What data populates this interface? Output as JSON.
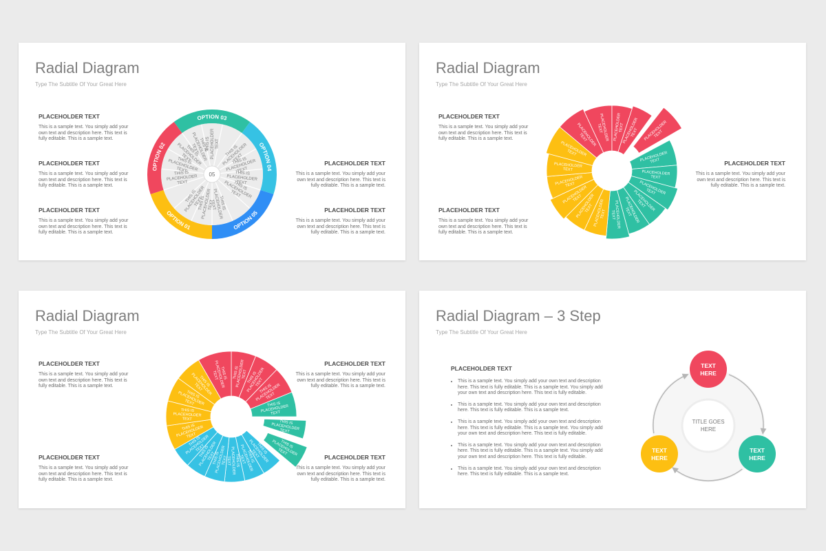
{
  "slides": [
    {
      "title": "Radial Diagram",
      "subtitle": "Type The Subtitle Of Your Great Here",
      "center": "05",
      "options": [
        {
          "label": "OPTION 01",
          "color": "#fdbf12"
        },
        {
          "label": "OPTION 02",
          "color": "#f0475e"
        },
        {
          "label": "OPTION 03",
          "color": "#2fc0a3"
        },
        {
          "label": "OPTION 04",
          "color": "#36c2e4"
        },
        {
          "label": "OPTION 05",
          "color": "#2f8ef5"
        }
      ],
      "segment_label": "THIS IS PLACEHOLDER TEXT",
      "blocks": [
        {
          "heading": "PLACEHOLDER TEXT",
          "body": "This is a sample text. You simply add your own text and description here. This text is fully editable. This is a sample text."
        },
        {
          "heading": "PLACEHOLDER TEXT",
          "body": "This is a sample text. You simply add your own text and description here. This text is fully editable. This is a sample text."
        },
        {
          "heading": "PLACEHOLDER TEXT",
          "body": "This is a sample text. You simply add your own text and description here. This text is fully editable. This is a sample text."
        },
        {
          "heading": "PLACEHOLDER TEXT",
          "body": "This is a sample text. You simply add your own text and description here. This text is fully editable. This is a sample text."
        },
        {
          "heading": "PLACEHOLDER TEXT",
          "body": "This is a sample text. You simply add your own text and description here. This text is fully editable. This is a sample text."
        }
      ]
    },
    {
      "title": "Radial Diagram",
      "subtitle": "Type The Subtitle Of Your Great Here",
      "segment_label": "PLACEHOLDER TEXT",
      "colors": {
        "red": "#f0475e",
        "yellow": "#fdbf12",
        "teal": "#2fc0a3"
      },
      "blocks": [
        {
          "heading": "PLACEHOLDER TEXT",
          "body": "This is a sample text. You simply add your own text and description here. This text is fully editable. This is a sample text."
        },
        {
          "heading": "PLACEHOLDER TEXT",
          "body": "This is a sample text. You simply add your own text and description here. This text is fully editable. This is a sample text."
        },
        {
          "heading": "PLACEHOLDER TEXT",
          "body": "This is a sample text. You simply add your own text and description here. This text is fully editable. This is a sample text."
        }
      ]
    },
    {
      "title": "Radial Diagram",
      "subtitle": "Type The Subtitle Of Your Great Here",
      "segment_label": "THIS IS PLACEHOLDER TEXT",
      "colors": {
        "red": "#f0475e",
        "teal": "#2fc0a3",
        "blue": "#36c2e4",
        "yellow": "#fdbf12"
      },
      "blocks": [
        {
          "heading": "PLACEHOLDER TEXT",
          "body": "This is a sample text. You simply add your own text and description here. This text is fully editable. This is a sample text."
        },
        {
          "heading": "PLACEHOLDER TEXT",
          "body": "This is a sample text. You simply add your own text and description here. This text is fully editable. This is a sample text."
        },
        {
          "heading": "PLACEHOLDER TEXT",
          "body": "This is a sample text. You simply add your own text and description here. This text is fully editable. This is a sample text."
        },
        {
          "heading": "PLACEHOLDER TEXT",
          "body": "This is a sample text. You simply add your own text and description here. This text is fully editable. This is a sample text."
        }
      ]
    },
    {
      "title": "Radial Diagram – 3 Step",
      "subtitle": "Type The Subtitle Of Your Great Here",
      "list_heading": "PLACEHOLDER TEXT",
      "bullets": [
        "This is a sample text. You simply add your own text and description here. This text is fully editable. This is a sample text. You simply add your own text and description here. This text is fully editable.",
        "This is a sample text. You simply add your own text and description here. This text is fully editable. This is a sample text.",
        "This is a sample text. You simply add your own text and description here. This text is fully editable. This is a sample text. You simply add your own text and description here. This text is fully editable.",
        "This is a sample text. You simply add your own text and description here. This text is fully editable. This is a sample text. You simply add your own text and description here. This text is fully editable.",
        "This is a sample text. You simply add your own text and description here. This text is fully editable. This is a sample text."
      ],
      "center": "TITLE GOES HERE",
      "steps": [
        {
          "label": "TEXT HERE",
          "color": "#f0475e"
        },
        {
          "label": "TEXT HERE",
          "color": "#2fc0a3"
        },
        {
          "label": "TEXT HERE",
          "color": "#fdbf12"
        }
      ]
    }
  ]
}
